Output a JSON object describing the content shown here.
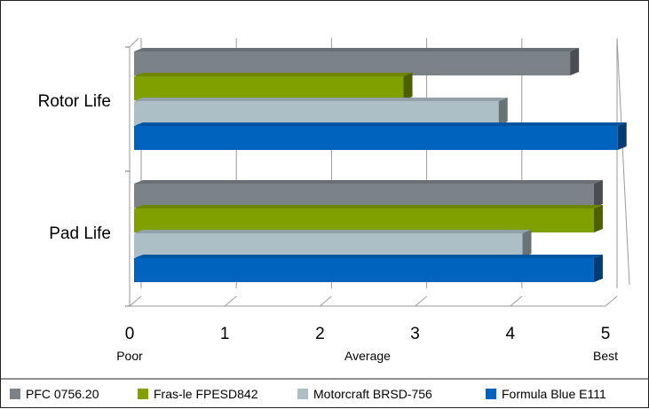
{
  "chart_data": {
    "type": "bar",
    "orientation": "horizontal",
    "three_d": true,
    "categories": [
      "Rotor Life",
      "Pad Life"
    ],
    "series": [
      {
        "name": "PFC 0756.20",
        "color": "#7b8288",
        "values": [
          4.6,
          4.85
        ]
      },
      {
        "name": "Fras-le FPESD842",
        "color": "#80a000",
        "values": [
          2.85,
          4.85
        ]
      },
      {
        "name": "Motorcraft BRSD-756",
        "color": "#adbfc6",
        "values": [
          3.85,
          4.1
        ]
      },
      {
        "name": "Formula Blue E111",
        "color": "#0064be",
        "values": [
          5.1,
          4.85
        ]
      }
    ],
    "x_ticks": [
      "0",
      "1",
      "2",
      "3",
      "4",
      "5"
    ],
    "xlim": [
      0,
      5
    ],
    "x_qualitative_labels": [
      {
        "at": 0,
        "label": "Poor"
      },
      {
        "at": 2.5,
        "label": "Average"
      },
      {
        "at": 5,
        "label": "Best"
      }
    ],
    "grid": true,
    "legend_position": "bottom"
  }
}
